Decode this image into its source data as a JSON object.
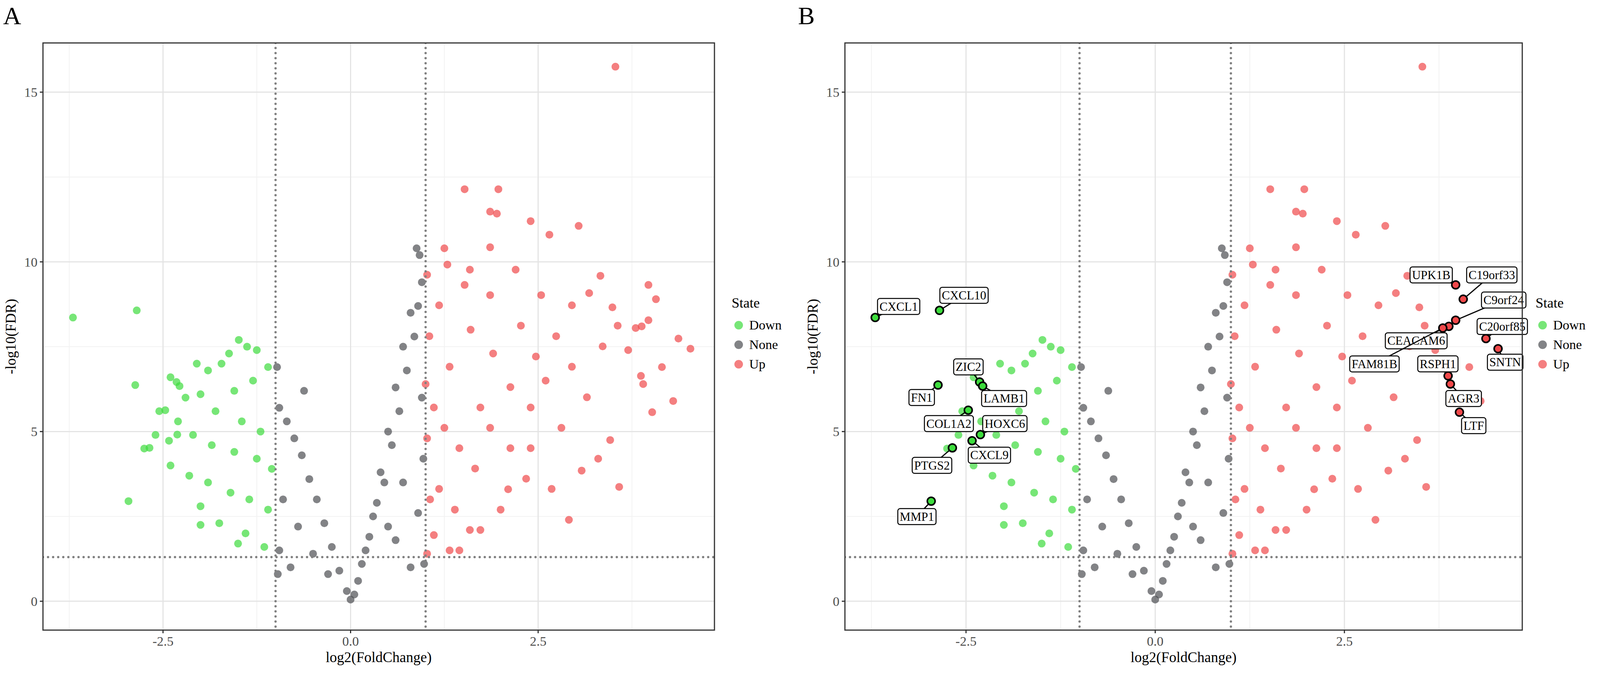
{
  "chart_data": [
    {
      "type": "scatter",
      "title": "A",
      "x_label": "log2(FoldChange)",
      "y_label": "-log10(FDR)",
      "legend_title": "State",
      "xlim": [
        -4.1,
        4.85
      ],
      "ylim": [
        -0.85,
        16.45
      ],
      "xticks": [
        -2.5,
        {
          "value": 0,
          "label": "0.0"
        },
        2.5
      ],
      "yticks": [
        0,
        5,
        10,
        15
      ],
      "vlines": [
        -1,
        1
      ],
      "hlines": [
        1.3
      ],
      "grid": true,
      "legend": "right",
      "series": [
        {
          "name": "Down",
          "color": "#3ddc3d",
          "x": [
            -1.49,
            -1.38,
            -1.62,
            -1.25,
            -1.72,
            -1.9,
            -2.05,
            -2.4,
            -2.2,
            -2.0,
            -1.55,
            -1.3,
            -1.1,
            -1.8,
            -1.45,
            -1.2,
            -2.55,
            -2.3,
            -2.6,
            -2.1,
            -1.85,
            -1.55,
            -1.25,
            -1.05,
            -2.4,
            -2.15,
            -1.9,
            -1.6,
            -1.35,
            -1.1,
            -2.0,
            -1.75,
            -2.0,
            -1.4,
            -1.15,
            -2.75,
            -1.5,
            -3.7,
            -2.85,
            -2.32,
            -2.87,
            -2.28,
            -2.47,
            -2.31,
            -2.42,
            -2.68,
            -2.96
          ],
          "values": [
            7.7,
            7.5,
            7.3,
            7.4,
            7.0,
            6.8,
            7.0,
            6.6,
            6.0,
            6.1,
            6.2,
            6.5,
            6.9,
            5.6,
            5.3,
            5.0,
            5.6,
            5.3,
            4.9,
            4.9,
            4.6,
            4.4,
            4.2,
            3.9,
            4.0,
            3.7,
            3.5,
            3.2,
            3.0,
            2.7,
            2.8,
            2.3,
            2.25,
            2.0,
            1.6,
            4.5,
            1.7,
            8.36,
            8.57,
            6.46,
            6.37,
            6.34,
            5.63,
            4.91,
            4.73,
            4.52,
            2.95
          ]
        },
        {
          "name": "None",
          "color": "#4d4f53",
          "x": [
            0.88,
            0.92,
            0.95,
            0.8,
            0.9,
            0.7,
            0.85,
            0.6,
            0.75,
            0.5,
            0.65,
            0.4,
            0.55,
            0.3,
            0.45,
            0.2,
            0.35,
            0.1,
            0.25,
            0.05,
            0,
            0.15,
            0.95,
            0.97,
            0.9,
            0.8,
            0.98,
            0.6,
            0.7,
            0.5,
            -0.05,
            -0.15,
            -0.25,
            -0.35,
            -0.45,
            -0.55,
            -0.65,
            -0.75,
            -0.85,
            -0.95,
            -0.98,
            -0.9,
            -0.7,
            -0.5,
            -0.8,
            -0.97,
            -0.62,
            -0.3,
            -0.95
          ],
          "values": [
            10.4,
            10.2,
            9.4,
            8.5,
            8.7,
            7.5,
            7.8,
            6.3,
            6.8,
            5.0,
            5.6,
            3.8,
            4.6,
            2.5,
            3.5,
            1.5,
            2.9,
            0.6,
            1.9,
            0.2,
            0.05,
            1.1,
            6.0,
            4.2,
            2.6,
            1.0,
            1.1,
            1.8,
            3.5,
            2.2,
            0.3,
            0.9,
            1.6,
            2.3,
            3.0,
            3.6,
            4.3,
            4.8,
            5.3,
            5.7,
            6.9,
            3.0,
            2.2,
            1.4,
            1.0,
            0.8,
            6.2,
            0.8,
            1.5
          ]
        },
        {
          "name": "Up",
          "color": "#f0484a",
          "x": [
            3.53,
            1.52,
            1.97,
            1.86,
            1.95,
            2.4,
            3.04,
            2.65,
            1.25,
            1.86,
            3.33,
            3.49,
            3.18,
            3.56,
            3.46,
            3.58,
            3.08,
            2.91,
            2.68,
            2.34,
            2.0,
            1.59,
            1.32,
            1.11,
            1.18,
            1.45,
            1.73,
            2.13,
            2.47,
            2.74,
            2.95,
            2.27,
            1.86,
            1.52,
            1.18,
            1.05,
            1.32,
            1.11,
            1.02,
            1.39,
            1.86,
            2.4,
            2.81,
            3.15,
            2.13,
            1.66,
            1.25,
            1.02,
            1.29,
            1.59,
            2.2,
            2.54,
            3.36,
            2.95,
            2.4,
            1.02,
            1.45,
            1.73,
            3.97,
            4.07,
            3.97,
            4.37,
            4.53,
            3.88,
            3.8,
            3.87,
            3.9,
            4.02,
            4.15,
            4.3,
            3.7,
            2.1,
            1.0,
            1.06,
            1.6,
            1.9,
            2.6,
            3.3
          ],
          "values": [
            15.75,
            12.14,
            12.14,
            11.48,
            11.42,
            11.2,
            11.06,
            10.8,
            10.4,
            10.43,
            9.59,
            8.66,
            9.08,
            8.12,
            4.75,
            3.37,
            3.85,
            2.4,
            3.31,
            3.61,
            2.7,
            2.1,
            1.5,
            1.95,
            3.31,
            4.51,
            5.71,
            6.31,
            7.21,
            7.81,
            8.72,
            8.12,
            9.02,
            9.32,
            8.72,
            7.81,
            6.91,
            5.71,
            4.8,
            2.7,
            5.11,
            5.71,
            5.11,
            6.01,
            4.51,
            3.91,
            5.11,
            9.62,
            9.92,
            9.77,
            9.77,
            9.02,
            7.51,
            6.91,
            4.51,
            1.4,
            1.5,
            2.1,
            9.32,
            8.9,
            8.28,
            7.74,
            7.44,
            8.1,
            8.05,
            6.64,
            6.4,
            5.57,
            6.9,
            5.9,
            7.4,
            3.3,
            6.4,
            3.0,
            8.0,
            7.3,
            6.5,
            4.2
          ]
        }
      ]
    },
    {
      "type": "scatter",
      "title": "B",
      "x_label": "log2(FoldChange)",
      "y_label": "-log10(FDR)",
      "legend_title": "State",
      "xlim": [
        -4.1,
        4.85
      ],
      "ylim": [
        -0.85,
        16.45
      ],
      "xticks": [
        -2.5,
        {
          "value": 0,
          "label": "0.0"
        },
        2.5
      ],
      "yticks": [
        0,
        5,
        10,
        15
      ],
      "vlines": [
        -1,
        1
      ],
      "hlines": [
        1.3
      ],
      "grid": true,
      "legend": "right",
      "series": [
        {
          "name": "Down",
          "color": "#3ddc3d",
          "x": [
            -1.49,
            -1.38,
            -1.62,
            -1.25,
            -1.72,
            -1.9,
            -2.05,
            -2.4,
            -2.2,
            -2.0,
            -1.55,
            -1.3,
            -1.1,
            -1.8,
            -1.45,
            -1.2,
            -2.55,
            -2.3,
            -2.6,
            -2.1,
            -1.85,
            -1.55,
            -1.25,
            -1.05,
            -2.4,
            -2.15,
            -1.9,
            -1.6,
            -1.35,
            -1.1,
            -2.0,
            -1.75,
            -2.0,
            -1.4,
            -1.15,
            -2.75,
            -1.5,
            -3.7,
            -2.85,
            -2.32,
            -2.87,
            -2.28,
            -2.47,
            -2.31,
            -2.42,
            -2.68,
            -2.96
          ],
          "values": [
            7.7,
            7.5,
            7.3,
            7.4,
            7.0,
            6.8,
            7.0,
            6.6,
            6.0,
            6.1,
            6.2,
            6.5,
            6.9,
            5.6,
            5.3,
            5.0,
            5.6,
            5.3,
            4.9,
            4.9,
            4.6,
            4.4,
            4.2,
            3.9,
            4.0,
            3.7,
            3.5,
            3.2,
            3.0,
            2.7,
            2.8,
            2.3,
            2.25,
            2.0,
            1.6,
            4.5,
            1.7,
            8.36,
            8.57,
            6.46,
            6.37,
            6.34,
            5.63,
            4.91,
            4.73,
            4.52,
            2.95
          ]
        },
        {
          "name": "None",
          "color": "#4d4f53",
          "x": [
            0.88,
            0.92,
            0.95,
            0.8,
            0.9,
            0.7,
            0.85,
            0.6,
            0.75,
            0.5,
            0.65,
            0.4,
            0.55,
            0.3,
            0.45,
            0.2,
            0.35,
            0.1,
            0.25,
            0.05,
            0,
            0.15,
            0.95,
            0.97,
            0.9,
            0.8,
            0.98,
            0.6,
            0.7,
            0.5,
            -0.05,
            -0.15,
            -0.25,
            -0.35,
            -0.45,
            -0.55,
            -0.65,
            -0.75,
            -0.85,
            -0.95,
            -0.98,
            -0.9,
            -0.7,
            -0.5,
            -0.8,
            -0.97,
            -0.62,
            -0.3,
            -0.95
          ],
          "values": [
            10.4,
            10.2,
            9.4,
            8.5,
            8.7,
            7.5,
            7.8,
            6.3,
            6.8,
            5.0,
            5.6,
            3.8,
            4.6,
            2.5,
            3.5,
            1.5,
            2.9,
            0.6,
            1.9,
            0.2,
            0.05,
            1.1,
            6.0,
            4.2,
            2.6,
            1.0,
            1.1,
            1.8,
            3.5,
            2.2,
            0.3,
            0.9,
            1.6,
            2.3,
            3.0,
            3.6,
            4.3,
            4.8,
            5.3,
            5.7,
            6.9,
            3.0,
            2.2,
            1.4,
            1.0,
            0.8,
            6.2,
            0.8,
            1.5
          ]
        },
        {
          "name": "Up",
          "color": "#f0484a",
          "x": [
            3.53,
            1.52,
            1.97,
            1.86,
            1.95,
            2.4,
            3.04,
            2.65,
            1.25,
            1.86,
            3.33,
            3.49,
            3.18,
            3.56,
            3.46,
            3.58,
            3.08,
            2.91,
            2.68,
            2.34,
            2.0,
            1.59,
            1.32,
            1.11,
            1.18,
            1.45,
            1.73,
            2.13,
            2.47,
            2.74,
            2.95,
            2.27,
            1.86,
            1.52,
            1.18,
            1.05,
            1.32,
            1.11,
            1.02,
            1.39,
            1.86,
            2.4,
            2.81,
            3.15,
            2.13,
            1.66,
            1.25,
            1.02,
            1.29,
            1.59,
            2.2,
            2.54,
            3.36,
            2.95,
            2.4,
            1.02,
            1.45,
            1.73,
            3.97,
            4.07,
            3.97,
            4.37,
            4.53,
            3.88,
            3.8,
            3.87,
            3.9,
            4.02,
            4.15,
            4.3,
            3.7,
            2.1,
            1.0,
            1.06,
            1.6,
            1.9,
            2.6,
            3.3
          ],
          "values": [
            15.75,
            12.14,
            12.14,
            11.48,
            11.42,
            11.2,
            11.06,
            10.8,
            10.4,
            10.43,
            9.59,
            8.66,
            9.08,
            8.12,
            4.75,
            3.37,
            3.85,
            2.4,
            3.31,
            3.61,
            2.7,
            2.1,
            1.5,
            1.95,
            3.31,
            4.51,
            5.71,
            6.31,
            7.21,
            7.81,
            8.72,
            8.12,
            9.02,
            9.32,
            8.72,
            7.81,
            6.91,
            5.71,
            4.8,
            2.7,
            5.11,
            5.71,
            5.11,
            6.01,
            4.51,
            3.91,
            5.11,
            9.62,
            9.92,
            9.77,
            9.77,
            9.02,
            7.51,
            6.91,
            4.51,
            1.4,
            1.5,
            2.1,
            9.32,
            8.9,
            8.28,
            7.74,
            7.44,
            8.1,
            8.05,
            6.64,
            6.4,
            5.57,
            6.9,
            5.9,
            7.4,
            3.3,
            6.4,
            3.0,
            8.0,
            7.3,
            6.5,
            4.2
          ]
        }
      ],
      "annotations": [
        {
          "text": "CXCL1",
          "x": -3.7,
          "y": 8.36
        },
        {
          "text": "CXCL10",
          "x": -2.85,
          "y": 8.57
        },
        {
          "text": "ZIC2",
          "x": -2.32,
          "y": 6.46
        },
        {
          "text": "FN1",
          "x": -2.87,
          "y": 6.37
        },
        {
          "text": "LAMB1",
          "x": -2.28,
          "y": 6.34
        },
        {
          "text": "COL1A2",
          "x": -2.47,
          "y": 5.63
        },
        {
          "text": "HOXC6",
          "x": -2.31,
          "y": 4.91
        },
        {
          "text": "CXCL9",
          "x": -2.42,
          "y": 4.73
        },
        {
          "text": "PTGS2",
          "x": -2.68,
          "y": 4.52
        },
        {
          "text": "MMP1",
          "x": -2.96,
          "y": 2.95
        },
        {
          "text": "UPK1B",
          "x": 3.97,
          "y": 9.32
        },
        {
          "text": "C19orf33",
          "x": 4.07,
          "y": 8.9
        },
        {
          "text": "C9orf24",
          "x": 3.97,
          "y": 8.28
        },
        {
          "text": "C20orf85",
          "x": 4.37,
          "y": 7.74
        },
        {
          "text": "SNTN",
          "x": 4.53,
          "y": 7.44
        },
        {
          "text": "CEACAM6",
          "x": 3.88,
          "y": 8.1
        },
        {
          "text": "FAM81B",
          "x": 3.8,
          "y": 8.05
        },
        {
          "text": "RSPH1",
          "x": 3.87,
          "y": 6.64
        },
        {
          "text": "AGR3",
          "x": 3.9,
          "y": 6.4
        },
        {
          "text": "LTF",
          "x": 4.02,
          "y": 5.57
        }
      ]
    }
  ]
}
